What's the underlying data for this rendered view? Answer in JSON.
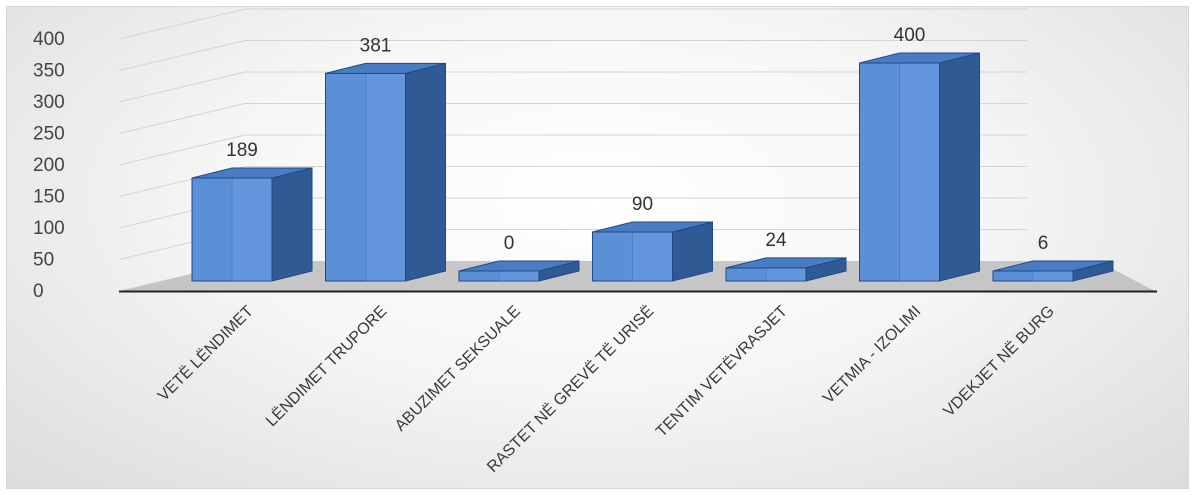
{
  "chart_data": {
    "type": "bar",
    "style": "3d-column",
    "title": "",
    "xlabel": "",
    "ylabel": "",
    "categories": [
      "VETË LËNDIMET",
      "LËNDIMET TRUPORE",
      "ABUZIMET SEKSUALE",
      "RASTET NË GREVË TË URISË",
      "TENTIM VETËVRASJET",
      "VETMIA - IZOLIMI",
      "VDEKJET NË BURG"
    ],
    "values": [
      189,
      381,
      0,
      90,
      24,
      400,
      6
    ],
    "data_labels": [
      "189",
      "381",
      "0",
      "90",
      "24",
      "400",
      "6"
    ],
    "yticks": [
      "0",
      "50",
      "100",
      "150",
      "200",
      "250",
      "300",
      "350",
      "400"
    ],
    "ylim": [
      0,
      400
    ],
    "grid": true,
    "legend": "none",
    "colors": {
      "bar_front": "#5b8fd6",
      "bar_front_light": "#7aaaf0",
      "bar_side": "#2f5a93",
      "bar_top": "#4a7cc4",
      "edge": "#1f4a8a",
      "gridline": "#d4d4d4",
      "floor": "#bdbdbd"
    }
  }
}
